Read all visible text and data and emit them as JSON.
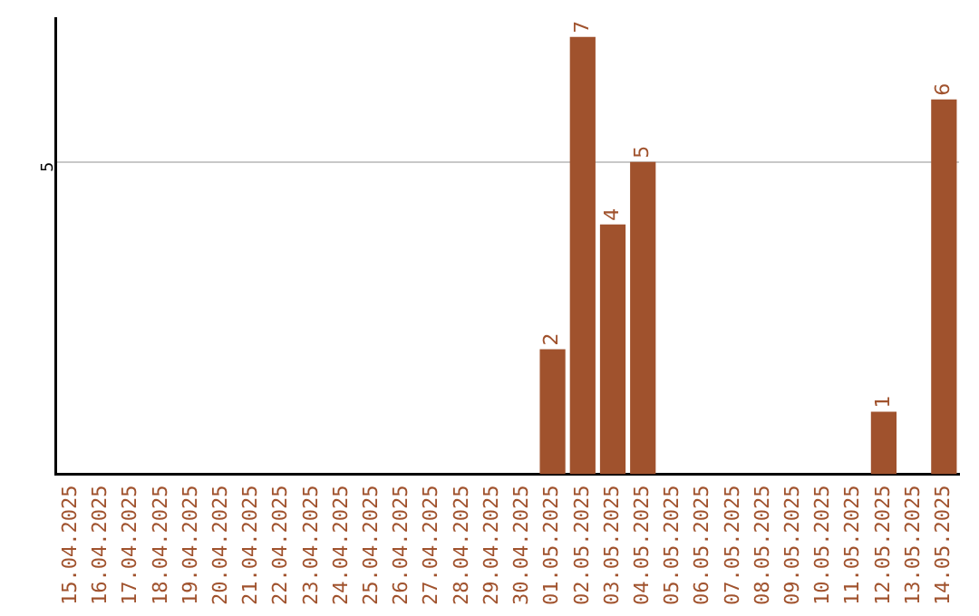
{
  "chart_data": {
    "type": "bar",
    "categories": [
      "15.04.2025",
      "16.04.2025",
      "17.04.2025",
      "18.04.2025",
      "19.04.2025",
      "20.04.2025",
      "21.04.2025",
      "22.04.2025",
      "23.04.2025",
      "24.04.2025",
      "25.04.2025",
      "26.04.2025",
      "27.04.2025",
      "28.04.2025",
      "29.04.2025",
      "30.04.2025",
      "01.05.2025",
      "02.05.2025",
      "03.05.2025",
      "04.05.2025",
      "05.05.2025",
      "06.05.2025",
      "07.05.2025",
      "08.05.2025",
      "09.05.2025",
      "10.05.2025",
      "11.05.2025",
      "12.05.2025",
      "13.05.2025",
      "14.05.2025"
    ],
    "values": [
      null,
      null,
      null,
      null,
      null,
      null,
      null,
      null,
      null,
      null,
      null,
      null,
      null,
      null,
      null,
      null,
      2,
      7,
      4,
      5,
      null,
      null,
      null,
      null,
      null,
      null,
      null,
      1,
      null,
      6
    ],
    "data_labels": true,
    "color": "#a0522d",
    "ylim": [
      0,
      7.3
    ],
    "yticks": [
      5
    ],
    "grid": "y",
    "legend": false
  }
}
